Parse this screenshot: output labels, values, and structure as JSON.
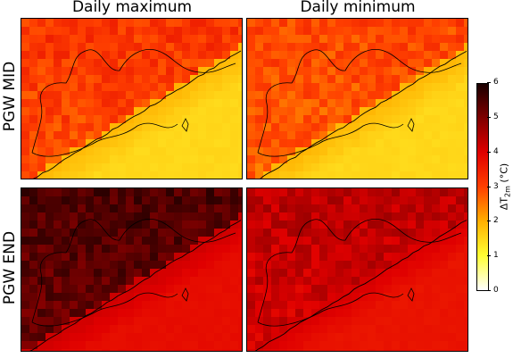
{
  "columns": [
    "Daily maximum",
    "Daily minimum"
  ],
  "rows": [
    "PGW MID",
    "PGW END"
  ],
  "panels": [
    {
      "row": 0,
      "col": 0,
      "land_mean_delta": 3.2,
      "sea_delta": 1.5
    },
    {
      "row": 0,
      "col": 1,
      "land_mean_delta": 3.0,
      "sea_delta": 1.5
    },
    {
      "row": 1,
      "col": 0,
      "land_mean_delta": 5.5,
      "sea_delta": 3.8
    },
    {
      "row": 1,
      "col": 1,
      "land_mean_delta": 4.4,
      "sea_delta": 3.7
    }
  ],
  "colorbar": {
    "label_main": "ΔT",
    "label_sub": "2m",
    "label_unit": " (°C)",
    "min": 0,
    "max": 6,
    "ticks": [
      "0",
      "1",
      "2",
      "3",
      "4",
      "5",
      "6"
    ],
    "colors": [
      "#ffffff",
      "#ffff33",
      "#ffb000",
      "#ff4000",
      "#e00000",
      "#800000",
      "#1a0000"
    ]
  }
}
